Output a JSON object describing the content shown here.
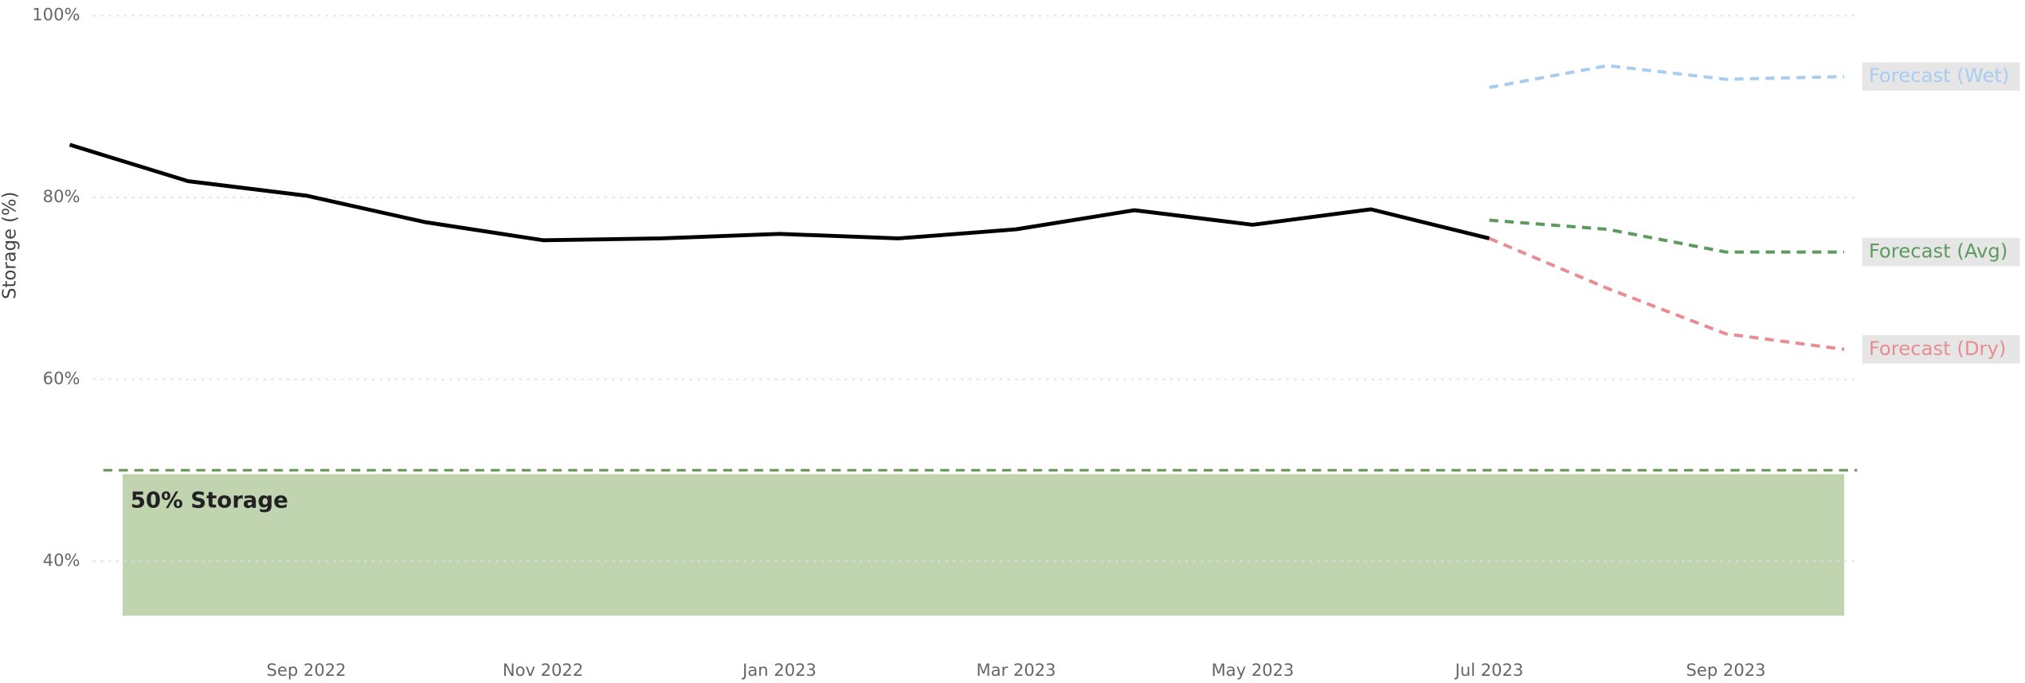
{
  "chart_data": {
    "type": "line",
    "y_label": "Storage (%)",
    "x": [
      "2022-07",
      "2022-08",
      "2022-09",
      "2022-10",
      "2022-11",
      "2022-12",
      "2023-01",
      "2023-02",
      "2023-03",
      "2023-04",
      "2023-05",
      "2023-06",
      "2023-07",
      "2023-08",
      "2023-09",
      "2023-10"
    ],
    "xlim": [
      "2022-07",
      "2023-10"
    ],
    "xticks": [
      {
        "value": "2022-09",
        "label": "Sep 2022"
      },
      {
        "value": "2022-11",
        "label": "Nov 2022"
      },
      {
        "value": "2023-01",
        "label": "Jan 2023"
      },
      {
        "value": "2023-03",
        "label": "Mar 2023"
      },
      {
        "value": "2023-05",
        "label": "May 2023"
      },
      {
        "value": "2023-07",
        "label": "Jul 2023"
      },
      {
        "value": "2023-09",
        "label": "Sep 2023"
      }
    ],
    "ylim": [
      34,
      100
    ],
    "yticks": [
      {
        "value": 40,
        "label": "40%"
      },
      {
        "value": 60,
        "label": "60%"
      },
      {
        "value": 80,
        "label": "80%"
      },
      {
        "value": 100,
        "label": "100%"
      }
    ],
    "grid": true,
    "series": [
      {
        "color": "#000000",
        "dashed": false,
        "values": [
          85.8,
          81.8,
          80.2,
          77.3,
          75.3,
          75.5,
          76.0,
          75.5,
          76.5,
          78.6,
          77.0,
          78.7,
          75.5,
          null,
          null,
          null
        ]
      },
      {
        "name": "Forecast (Wet)",
        "color": "#a9cdf2",
        "dashed": true,
        "values": [
          null,
          null,
          null,
          null,
          null,
          null,
          null,
          null,
          null,
          null,
          null,
          null,
          92.1,
          94.5,
          93.0,
          93.3
        ]
      },
      {
        "name": "Forecast (Avg)",
        "color": "#5e9a5e",
        "dashed": true,
        "values": [
          null,
          null,
          null,
          null,
          null,
          null,
          null,
          null,
          null,
          null,
          null,
          null,
          77.5,
          76.5,
          74.0,
          74.0
        ]
      },
      {
        "name": "Forecast (Dry)",
        "color": "#e88c93",
        "dashed": true,
        "values": [
          null,
          null,
          null,
          null,
          null,
          null,
          null,
          null,
          null,
          null,
          null,
          null,
          75.5,
          70.0,
          65.0,
          63.3
        ]
      }
    ],
    "threshold": 50,
    "threshold_label": "50% Storage",
    "threshold_color": "#6a9a5a",
    "threshold_fill": "#c0d4b0"
  }
}
